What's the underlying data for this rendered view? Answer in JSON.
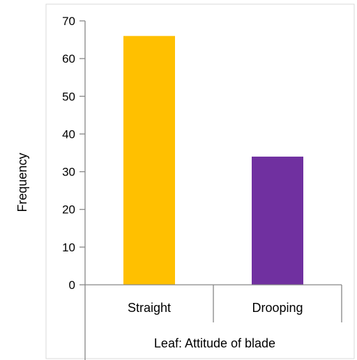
{
  "chart_data": {
    "type": "bar",
    "categories": [
      "Straight",
      "Drooping"
    ],
    "values": [
      66,
      34
    ],
    "colors": [
      "#FFC000",
      "#7030A0"
    ],
    "title": "",
    "xlabel": "Leaf: Attitude of blade",
    "ylabel": "Frequency",
    "ylim": [
      0,
      70
    ],
    "yticks": [
      0,
      10,
      20,
      30,
      40,
      50,
      60,
      70
    ],
    "ytick_labels": [
      "0",
      "10",
      "20",
      "30",
      "40",
      "50",
      "60",
      "70"
    ],
    "grid": false,
    "legend": "none"
  }
}
